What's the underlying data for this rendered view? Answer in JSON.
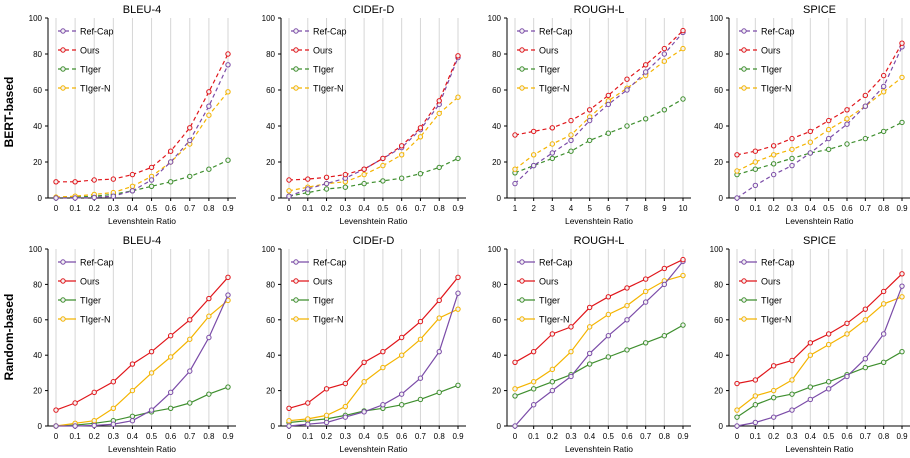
{
  "row_labels": [
    "BERT-based",
    "Random-based"
  ],
  "legend": [
    "Ref-Cap",
    "Ours",
    "TIger",
    "TIger-N"
  ],
  "colors": {
    "Ref-Cap": "#7b4ca8",
    "Ours": "#e0161b",
    "TIger": "#3f8f2f",
    "TIger-N": "#f4b400"
  },
  "chart_data": [
    {
      "type": "line",
      "row": "BERT-based",
      "title": "BLEU-4",
      "xlabel": "Levenshtein Ratio",
      "x": [
        "0",
        "0.1",
        "0.2",
        "0.3",
        "0.4",
        "0.5",
        "0.6",
        "0.7",
        "0.8",
        "0.9"
      ],
      "ylim": [
        0,
        100
      ],
      "yticks": [
        0,
        20,
        40,
        60,
        80,
        100
      ],
      "line_style": "dashed",
      "grid": "vertical",
      "legend_position": "top-left",
      "series": [
        {
          "name": "Ref-Cap",
          "values": [
            0,
            0,
            0.3,
            1,
            4,
            10,
            20,
            32,
            51,
            74
          ]
        },
        {
          "name": "Ours",
          "values": [
            9,
            9,
            10,
            10.5,
            13,
            17,
            26,
            39,
            59,
            80
          ]
        },
        {
          "name": "TIger",
          "values": [
            0,
            0.5,
            1,
            2,
            4,
            6.5,
            9,
            12,
            16,
            21
          ]
        },
        {
          "name": "TIger-N",
          "values": [
            0.5,
            1,
            2,
            3,
            6.5,
            12,
            20,
            30,
            46,
            59
          ]
        }
      ]
    },
    {
      "type": "line",
      "row": "BERT-based",
      "title": "CIDEr-D",
      "xlabel": "Levenshtein Ratio",
      "x": [
        "0",
        "0.1",
        "0.2",
        "0.3",
        "0.4",
        "0.5",
        "0.6",
        "0.7",
        "0.8",
        "0.9"
      ],
      "ylim": [
        0,
        100
      ],
      "yticks": [
        0,
        20,
        40,
        60,
        80,
        100
      ],
      "line_style": "dashed",
      "grid": "vertical",
      "legend_position": "top-left",
      "series": [
        {
          "name": "Ref-Cap",
          "values": [
            1,
            5,
            8,
            11,
            16,
            22,
            28,
            38,
            52,
            78
          ]
        },
        {
          "name": "Ours",
          "values": [
            10,
            10.5,
            11.5,
            13,
            16,
            22,
            29,
            39,
            54,
            79
          ]
        },
        {
          "name": "TIger",
          "values": [
            1,
            3,
            5,
            6,
            8,
            9.5,
            11,
            13.5,
            17,
            22
          ]
        },
        {
          "name": "TIger-N",
          "values": [
            4,
            6,
            8,
            9,
            13,
            18,
            24,
            34,
            47,
            56
          ]
        }
      ]
    },
    {
      "type": "line",
      "row": "BERT-based",
      "title": "ROUGH-L",
      "xlabel": "Levenshtein Ratio",
      "x": [
        "1",
        "2",
        "3",
        "4",
        "5",
        "6",
        "7",
        "8",
        "9",
        "10"
      ],
      "ylim": [
        0,
        100
      ],
      "yticks": [
        0,
        20,
        40,
        60,
        80,
        100
      ],
      "line_style": "dashed",
      "grid": "vertical",
      "legend_position": "top-left",
      "series": [
        {
          "name": "Ref-Cap",
          "values": [
            8,
            18,
            25,
            32,
            43,
            52,
            60,
            70,
            80,
            92
          ]
        },
        {
          "name": "Ours",
          "values": [
            35,
            37,
            39,
            43,
            49,
            57,
            66,
            74,
            83,
            93
          ]
        },
        {
          "name": "TIger",
          "values": [
            14,
            18,
            22,
            26,
            32,
            36,
            40,
            44,
            49,
            55
          ]
        },
        {
          "name": "TIger-N",
          "values": [
            16,
            24,
            30,
            35,
            45,
            54,
            61,
            68,
            76,
            83
          ]
        }
      ]
    },
    {
      "type": "line",
      "row": "BERT-based",
      "title": "SPICE",
      "xlabel": "Levenshtein Ratio",
      "x": [
        "0",
        "0.1",
        "0.2",
        "0.3",
        "0.4",
        "0.5",
        "0.6",
        "0.7",
        "0.8",
        "0.9"
      ],
      "ylim": [
        0,
        100
      ],
      "yticks": [
        0,
        20,
        40,
        60,
        80,
        100
      ],
      "line_style": "dashed",
      "grid": "vertical",
      "legend_position": "top-left",
      "series": [
        {
          "name": "Ref-Cap",
          "values": [
            0,
            7,
            13,
            18,
            25,
            33,
            41,
            51,
            62,
            84
          ]
        },
        {
          "name": "Ours",
          "values": [
            24,
            26,
            29,
            33,
            37,
            43,
            49,
            57,
            68,
            86
          ]
        },
        {
          "name": "TIger",
          "values": [
            13,
            16,
            19,
            22,
            25,
            27,
            30,
            33,
            37,
            42
          ]
        },
        {
          "name": "TIger-N",
          "values": [
            15,
            20,
            24,
            27,
            31,
            38,
            44,
            51,
            59,
            67
          ]
        }
      ]
    },
    {
      "type": "line",
      "row": "Random-based",
      "title": "BLEU-4",
      "xlabel": "Levenshtein Ratio",
      "x": [
        "0",
        "0.1",
        "0.2",
        "0.3",
        "0.4",
        "0.5",
        "0.6",
        "0.7",
        "0.8",
        "0.9"
      ],
      "ylim": [
        0,
        100
      ],
      "yticks": [
        0,
        20,
        40,
        60,
        80,
        100
      ],
      "line_style": "solid",
      "grid": "vertical",
      "legend_position": "top-left",
      "series": [
        {
          "name": "Ref-Cap",
          "values": [
            0,
            0,
            0.3,
            1,
            3,
            9,
            19,
            31,
            50,
            74
          ]
        },
        {
          "name": "Ours",
          "values": [
            9,
            13,
            19,
            25,
            35,
            42,
            51,
            60,
            72,
            84
          ]
        },
        {
          "name": "TIger",
          "values": [
            0,
            0.5,
            1.5,
            3,
            5.5,
            8,
            10,
            13,
            18,
            22
          ]
        },
        {
          "name": "TIger-N",
          "values": [
            0,
            1.5,
            3,
            10,
            20,
            30,
            39,
            49,
            62,
            71
          ]
        }
      ]
    },
    {
      "type": "line",
      "row": "Random-based",
      "title": "CIDEr-D",
      "xlabel": "Levenshtein Ratio",
      "x": [
        "0",
        "0.1",
        "0.2",
        "0.3",
        "0.4",
        "0.5",
        "0.6",
        "0.7",
        "0.8",
        "0.9"
      ],
      "ylim": [
        0,
        100
      ],
      "yticks": [
        0,
        20,
        40,
        60,
        80,
        100
      ],
      "line_style": "solid",
      "grid": "vertical",
      "legend_position": "top-left",
      "series": [
        {
          "name": "Ref-Cap",
          "values": [
            0,
            1,
            2,
            5,
            8,
            12,
            18,
            27,
            42,
            75
          ]
        },
        {
          "name": "Ours",
          "values": [
            10,
            13,
            21,
            24,
            36,
            42,
            50,
            59,
            71,
            84
          ]
        },
        {
          "name": "TIger",
          "values": [
            2,
            3,
            4,
            6,
            8.5,
            10,
            12,
            15,
            19,
            23
          ]
        },
        {
          "name": "TIger-N",
          "values": [
            3,
            4,
            6,
            11,
            25,
            33,
            40,
            49,
            61,
            66
          ]
        }
      ]
    },
    {
      "type": "line",
      "row": "Random-based",
      "title": "ROUGH-L",
      "xlabel": "Levenshtein Ratio",
      "x": [
        "0",
        "0.1",
        "0.2",
        "0.3",
        "0.4",
        "0.5",
        "0.6",
        "0.7",
        "0.8",
        "0.9"
      ],
      "ylim": [
        0,
        100
      ],
      "yticks": [
        0,
        20,
        40,
        60,
        80,
        100
      ],
      "line_style": "solid",
      "grid": "vertical",
      "legend_position": "top-left",
      "series": [
        {
          "name": "Ref-Cap",
          "values": [
            0,
            12,
            20,
            28,
            41,
            51,
            60,
            70,
            80,
            93
          ]
        },
        {
          "name": "Ours",
          "values": [
            36,
            42,
            52,
            56,
            67,
            73,
            78,
            83,
            89,
            94
          ]
        },
        {
          "name": "TIger",
          "values": [
            17,
            21,
            25,
            29,
            35,
            39,
            43,
            47,
            51,
            57
          ]
        },
        {
          "name": "TIger-N",
          "values": [
            21,
            25,
            32,
            42,
            56,
            63,
            68,
            76,
            82,
            85
          ]
        }
      ]
    },
    {
      "type": "line",
      "row": "Random-based",
      "title": "SPICE",
      "xlabel": "Levenshtein Ratio",
      "x": [
        "0",
        "0.1",
        "0.2",
        "0.3",
        "0.4",
        "0.5",
        "0.6",
        "0.7",
        "0.8",
        "0.9"
      ],
      "ylim": [
        0,
        100
      ],
      "yticks": [
        0,
        20,
        40,
        60,
        80,
        100
      ],
      "line_style": "solid",
      "grid": "vertical",
      "legend_position": "top-left",
      "series": [
        {
          "name": "Ref-Cap",
          "values": [
            0,
            2,
            5,
            9,
            15,
            21,
            28,
            38,
            52,
            79
          ]
        },
        {
          "name": "Ours",
          "values": [
            24,
            26,
            34,
            37,
            47,
            52,
            58,
            66,
            76,
            86
          ]
        },
        {
          "name": "TIger",
          "values": [
            5,
            12,
            16,
            18,
            22,
            25,
            29,
            33,
            36,
            42
          ]
        },
        {
          "name": "TIger-N",
          "values": [
            9,
            17,
            20,
            26,
            40,
            46,
            52,
            60,
            69,
            73
          ]
        }
      ]
    }
  ]
}
